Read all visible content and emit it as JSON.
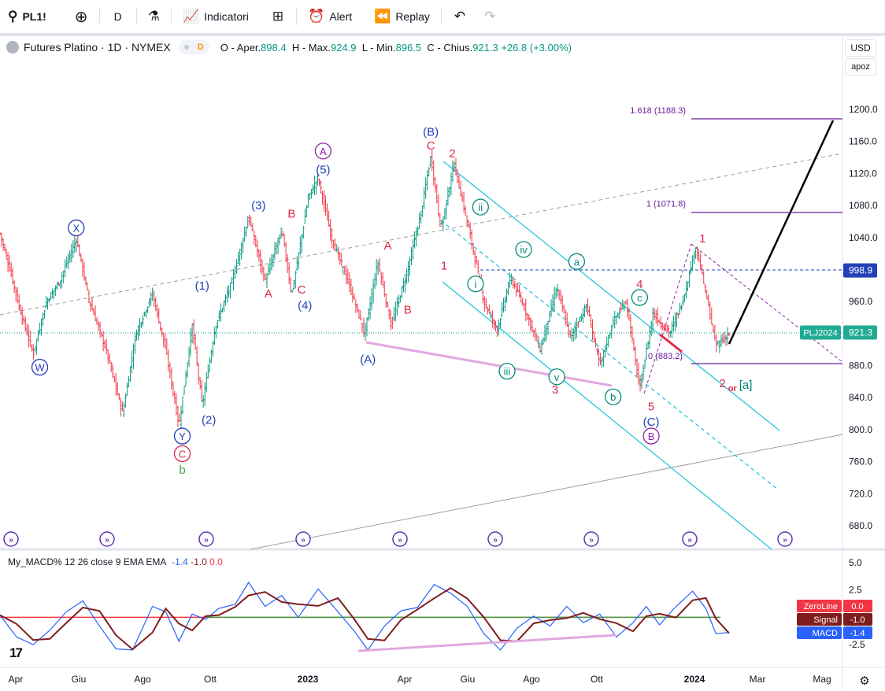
{
  "toolbar": {
    "symbol": "PL1!",
    "interval": "D",
    "indicators_label": "Indicatori",
    "alert_label": "Alert",
    "replay_label": "Replay"
  },
  "legend": {
    "symbol_desc": "Futures Platino · 1D · NYMEX",
    "badge": "D",
    "o_label": "O - Aper.",
    "o_value": "898.4",
    "h_label": "H - Max.",
    "h_value": "924.9",
    "l_label": "L - Min.",
    "l_value": "896.5",
    "c_label": "C - Chius.",
    "c_value": "921.3",
    "change": "+26.8 (+3.00%)"
  },
  "price_scale": {
    "currency": "USD",
    "mode": "apoz"
  },
  "macd_legend": {
    "name": "My_MACD% 12 26 close 9 EMA EMA",
    "v1": "-1.4",
    "v2": "-1.0",
    "v3": "0.0"
  },
  "colors": {
    "up": "#089981",
    "down": "#f23645",
    "cyan": "#26c6da",
    "blue": "#2340b8",
    "red": "#e0294b",
    "purple": "#8e24aa",
    "green": "#43a047",
    "teal": "#00897b"
  },
  "chart_data": [
    {
      "type": "candlestick",
      "title": "Futures Platino · 1D · NYMEX",
      "y_axis_ticks": [
        1200.0,
        1160.0,
        1120.0,
        1080.0,
        1040.0,
        960.0,
        920.0,
        880.0,
        840.0,
        800.0,
        760.0,
        720.0,
        680.0
      ],
      "ylim": [
        650,
        1240
      ],
      "x_axis_ticks": [
        "Apr",
        "Giu",
        "Ago",
        "Ott",
        "2023",
        "Apr",
        "Giu",
        "Ago",
        "Ott",
        "2024",
        "Mar",
        "Mag"
      ],
      "price_path": [
        {
          "x": 0,
          "y": 1045
        },
        {
          "x": 0.3,
          "y": 1000
        },
        {
          "x": 0.6,
          "y": 950
        },
        {
          "x": 1.0,
          "y": 895
        },
        {
          "x": 1.4,
          "y": 960
        },
        {
          "x": 1.8,
          "y": 985
        },
        {
          "x": 2.3,
          "y": 1038
        },
        {
          "x": 2.7,
          "y": 960
        },
        {
          "x": 3.2,
          "y": 900
        },
        {
          "x": 3.7,
          "y": 820
        },
        {
          "x": 4.1,
          "y": 920
        },
        {
          "x": 4.6,
          "y": 970
        },
        {
          "x": 5.0,
          "y": 900
        },
        {
          "x": 5.4,
          "y": 805
        },
        {
          "x": 5.8,
          "y": 930
        },
        {
          "x": 6.1,
          "y": 830
        },
        {
          "x": 6.5,
          "y": 930
        },
        {
          "x": 7.0,
          "y": 985
        },
        {
          "x": 7.5,
          "y": 1065
        },
        {
          "x": 8.0,
          "y": 985
        },
        {
          "x": 8.5,
          "y": 1050
        },
        {
          "x": 8.8,
          "y": 968
        },
        {
          "x": 9.3,
          "y": 1090
        },
        {
          "x": 9.6,
          "y": 1115
        },
        {
          "x": 10.0,
          "y": 1040
        },
        {
          "x": 10.5,
          "y": 985
        },
        {
          "x": 11.0,
          "y": 920
        },
        {
          "x": 11.4,
          "y": 1010
        },
        {
          "x": 11.8,
          "y": 930
        },
        {
          "x": 12.3,
          "y": 1000
        },
        {
          "x": 12.7,
          "y": 1070
        },
        {
          "x": 13.0,
          "y": 1142
        },
        {
          "x": 13.3,
          "y": 1050
        },
        {
          "x": 13.7,
          "y": 1132
        },
        {
          "x": 14.2,
          "y": 1040
        },
        {
          "x": 14.6,
          "y": 960
        },
        {
          "x": 15.0,
          "y": 925
        },
        {
          "x": 15.4,
          "y": 990
        },
        {
          "x": 15.8,
          "y": 955
        },
        {
          "x": 16.3,
          "y": 900
        },
        {
          "x": 16.8,
          "y": 978
        },
        {
          "x": 17.2,
          "y": 915
        },
        {
          "x": 17.7,
          "y": 955
        },
        {
          "x": 18.1,
          "y": 880
        },
        {
          "x": 18.5,
          "y": 935
        },
        {
          "x": 18.9,
          "y": 960
        },
        {
          "x": 19.3,
          "y": 850
        },
        {
          "x": 19.7,
          "y": 945
        },
        {
          "x": 20.2,
          "y": 920
        },
        {
          "x": 20.6,
          "y": 960
        },
        {
          "x": 21.0,
          "y": 1030
        },
        {
          "x": 21.3,
          "y": 970
        },
        {
          "x": 21.6,
          "y": 905
        },
        {
          "x": 22.0,
          "y": 920
        }
      ],
      "last_price": 921.3,
      "symbol_label": "PLJ2024",
      "horizontal_level": 998.9,
      "fib_levels": [
        {
          "label": "1.618 (1188.3)",
          "value": 1188.3
        },
        {
          "label": "1 (1071.8)",
          "value": 1071.8
        },
        {
          "label": "0 (883.2)",
          "value": 883.2
        }
      ],
      "wave_labels": [
        {
          "text": "W",
          "circle": true,
          "color": "blue",
          "x": 1.2,
          "y": 878
        },
        {
          "text": "X",
          "circle": true,
          "color": "blue",
          "x": 2.3,
          "y": 1052
        },
        {
          "text": "Y",
          "circle": true,
          "color": "blue",
          "x": 5.5,
          "y": 792
        },
        {
          "text": "C",
          "circle": true,
          "color": "red",
          "x": 5.5,
          "y": 770
        },
        {
          "text": "b",
          "circle": false,
          "color": "green",
          "x": 5.5,
          "y": 750
        },
        {
          "text": "(1)",
          "circle": false,
          "color": "blue",
          "x": 6.1,
          "y": 980
        },
        {
          "text": "(2)",
          "circle": false,
          "color": "blue",
          "x": 6.3,
          "y": 812
        },
        {
          "text": "(3)",
          "circle": false,
          "color": "blue",
          "x": 7.8,
          "y": 1080
        },
        {
          "text": "A",
          "circle": false,
          "color": "red",
          "x": 8.1,
          "y": 970
        },
        {
          "text": "B",
          "circle": false,
          "color": "red",
          "x": 8.8,
          "y": 1070
        },
        {
          "text": "C",
          "circle": false,
          "color": "red",
          "x": 9.1,
          "y": 975
        },
        {
          "text": "(4)",
          "circle": false,
          "color": "blue",
          "x": 9.2,
          "y": 955
        },
        {
          "text": "(5)",
          "circle": false,
          "color": "blue",
          "x": 9.75,
          "y": 1125
        },
        {
          "text": "A",
          "circle": true,
          "color": "purple",
          "x": 9.75,
          "y": 1148
        },
        {
          "text": "(A)",
          "circle": false,
          "color": "blue",
          "x": 11.1,
          "y": 888
        },
        {
          "text": "A",
          "circle": false,
          "color": "red",
          "x": 11.7,
          "y": 1030
        },
        {
          "text": "B",
          "circle": false,
          "color": "red",
          "x": 12.3,
          "y": 950
        },
        {
          "text": "(B)",
          "circle": false,
          "color": "blue",
          "x": 13.0,
          "y": 1172
        },
        {
          "text": "C",
          "circle": false,
          "color": "red",
          "x": 13.0,
          "y": 1155
        },
        {
          "text": "1",
          "circle": false,
          "color": "red",
          "x": 13.4,
          "y": 1005
        },
        {
          "text": "2",
          "circle": false,
          "color": "red",
          "x": 13.65,
          "y": 1145
        },
        {
          "text": "ii",
          "circle": true,
          "color": "teal",
          "x": 14.5,
          "y": 1078
        },
        {
          "text": "i",
          "circle": true,
          "color": "teal",
          "x": 14.35,
          "y": 982
        },
        {
          "text": "iv",
          "circle": true,
          "color": "teal",
          "x": 15.8,
          "y": 1025
        },
        {
          "text": "iii",
          "circle": true,
          "color": "teal",
          "x": 15.3,
          "y": 873
        },
        {
          "text": "a",
          "circle": true,
          "color": "teal",
          "x": 17.4,
          "y": 1010
        },
        {
          "text": "v",
          "circle": true,
          "color": "teal",
          "x": 16.8,
          "y": 866
        },
        {
          "text": "3",
          "circle": false,
          "color": "red",
          "x": 16.75,
          "y": 850
        },
        {
          "text": "b",
          "circle": true,
          "color": "teal",
          "x": 18.5,
          "y": 841
        },
        {
          "text": "4",
          "circle": false,
          "color": "red",
          "x": 19.3,
          "y": 982
        },
        {
          "text": "c",
          "circle": true,
          "color": "teal",
          "x": 19.3,
          "y": 965
        },
        {
          "text": "5",
          "circle": false,
          "color": "red",
          "x": 19.65,
          "y": 829
        },
        {
          "text": "(C)",
          "circle": false,
          "color": "blue",
          "x": 19.65,
          "y": 810
        },
        {
          "text": "B",
          "circle": true,
          "color": "purple",
          "x": 19.65,
          "y": 792
        },
        {
          "text": "1",
          "circle": false,
          "color": "red",
          "x": 21.2,
          "y": 1039
        },
        {
          "text": "2",
          "circle": false,
          "color": "red",
          "x": 21.8,
          "y": 858
        },
        {
          "text": "or",
          "circle": false,
          "color": "red",
          "x": 22.1,
          "y": 853
        },
        {
          "text": "[a]",
          "circle": false,
          "color": "teal",
          "x": 22.5,
          "y": 856
        }
      ]
    },
    {
      "type": "line",
      "title": "My_MACD% 12 26 close 9 EMA EMA",
      "y_axis_ticks": [
        5.0,
        2.5,
        -2.5
      ],
      "ylim": [
        -5,
        6
      ],
      "series": [
        {
          "name": "MACD",
          "value": -1.4
        },
        {
          "name": "Signal",
          "value": -1.0
        },
        {
          "name": "ZeroLine",
          "value": 0.0
        }
      ],
      "macd_path": [
        {
          "x": 0,
          "y": 0.2
        },
        {
          "x": 0.5,
          "y": -1.8
        },
        {
          "x": 1.0,
          "y": -2.5
        },
        {
          "x": 1.5,
          "y": -1.2
        },
        {
          "x": 2.0,
          "y": 0.5
        },
        {
          "x": 2.5,
          "y": 1.5
        },
        {
          "x": 3.0,
          "y": -0.8
        },
        {
          "x": 3.5,
          "y": -2.9
        },
        {
          "x": 4.0,
          "y": -3.0
        },
        {
          "x": 4.6,
          "y": 1.0
        },
        {
          "x": 5.0,
          "y": 0.5
        },
        {
          "x": 5.4,
          "y": -2.2
        },
        {
          "x": 5.8,
          "y": 0.3
        },
        {
          "x": 6.2,
          "y": -0.2
        },
        {
          "x": 6.6,
          "y": 0.8
        },
        {
          "x": 7.1,
          "y": 1.2
        },
        {
          "x": 7.5,
          "y": 3.2
        },
        {
          "x": 8.0,
          "y": 1.0
        },
        {
          "x": 8.5,
          "y": 2.0
        },
        {
          "x": 9.0,
          "y": 0.0
        },
        {
          "x": 9.6,
          "y": 2.6
        },
        {
          "x": 10.2,
          "y": 0.5
        },
        {
          "x": 10.7,
          "y": -1.3
        },
        {
          "x": 11.1,
          "y": -3.0
        },
        {
          "x": 11.6,
          "y": -0.8
        },
        {
          "x": 12.1,
          "y": 0.6
        },
        {
          "x": 12.6,
          "y": 0.9
        },
        {
          "x": 13.1,
          "y": 3.0
        },
        {
          "x": 13.6,
          "y": 2.2
        },
        {
          "x": 14.1,
          "y": 1.0
        },
        {
          "x": 14.6,
          "y": -1.5
        },
        {
          "x": 15.1,
          "y": -3.0
        },
        {
          "x": 15.6,
          "y": -1.0
        },
        {
          "x": 16.1,
          "y": 0.1
        },
        {
          "x": 16.6,
          "y": -0.8
        },
        {
          "x": 17.1,
          "y": 1.0
        },
        {
          "x": 17.6,
          "y": -0.5
        },
        {
          "x": 18.1,
          "y": 0.3
        },
        {
          "x": 18.6,
          "y": -1.8
        },
        {
          "x": 19.1,
          "y": -0.5
        },
        {
          "x": 19.5,
          "y": 1.0
        },
        {
          "x": 19.9,
          "y": -0.7
        },
        {
          "x": 20.4,
          "y": 1.0
        },
        {
          "x": 20.9,
          "y": 2.4
        },
        {
          "x": 21.3,
          "y": 0.8
        },
        {
          "x": 21.6,
          "y": -1.5
        },
        {
          "x": 22.0,
          "y": -1.4
        }
      ]
    }
  ],
  "annotations": {
    "price_label_left": "0 (883.2)"
  }
}
